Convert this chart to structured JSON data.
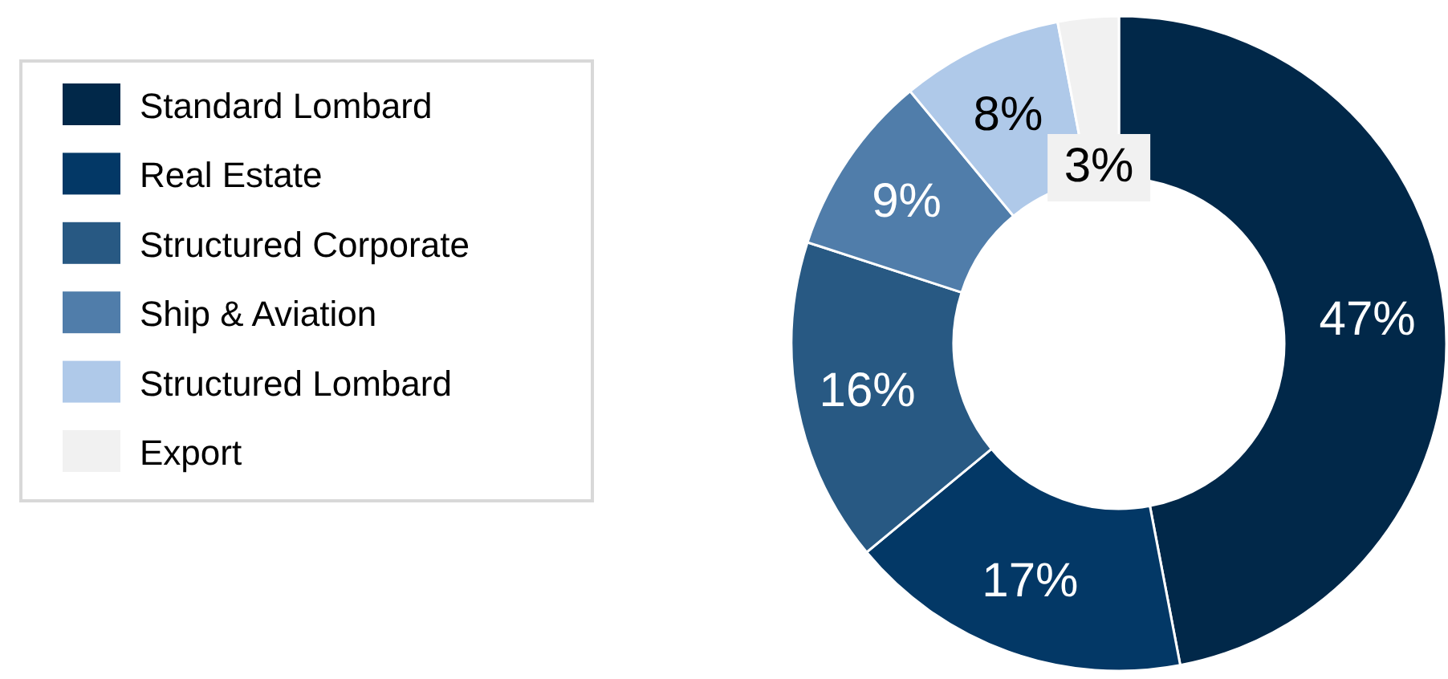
{
  "chart_data": {
    "type": "donut",
    "categories": [
      "Standard Lombard",
      "Real Estate",
      "Structured Corporate",
      "Ship & Aviation",
      "Structured Lombard",
      "Export"
    ],
    "values": [
      47,
      17,
      16,
      9,
      8,
      3
    ],
    "value_labels": [
      "47%",
      "17%",
      "16%",
      "9%",
      "8%",
      "3%"
    ],
    "colors": [
      "#012849",
      "#033866",
      "#285983",
      "#507daa",
      "#afc9e9",
      "#f1f1f1"
    ],
    "legend": "left"
  }
}
